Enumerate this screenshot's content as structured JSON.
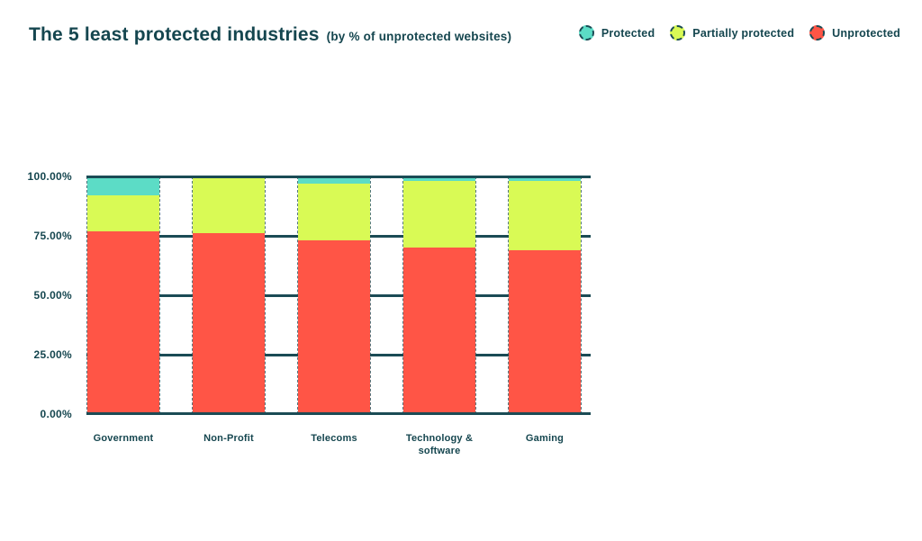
{
  "header": {
    "title": "The 5 least protected industries",
    "subtitle": "(by % of unprotected websites)"
  },
  "legend": {
    "items": [
      {
        "label": "Protected",
        "color": "#5CDCC6"
      },
      {
        "label": "Partially protected",
        "color": "#D9FA55"
      },
      {
        "label": "Unprotected",
        "color": "#FF5546"
      }
    ]
  },
  "chart_data": {
    "type": "bar",
    "stacked": true,
    "title": "The 5 least protected industries",
    "subtitle": "(by % of unprotected websites)",
    "categories": [
      "Government",
      "Non-Profit",
      "Telecoms",
      "Technology & software",
      "Gaming"
    ],
    "series": [
      {
        "name": "Protected",
        "color": "#5CDCC6",
        "values": [
          8,
          0,
          3,
          2,
          2
        ]
      },
      {
        "name": "Partially protected",
        "color": "#D9FA55",
        "values": [
          15,
          24,
          24,
          28,
          29
        ]
      },
      {
        "name": "Unprotected",
        "color": "#FF5546",
        "values": [
          77,
          76,
          73,
          70,
          69
        ]
      }
    ],
    "units": "%",
    "ylim": [
      0,
      100
    ],
    "yticks": [
      {
        "label": "100.00%",
        "value": 100
      },
      {
        "label": "75.00%",
        "value": 75
      },
      {
        "label": "50.00%",
        "value": 50
      },
      {
        "label": "25.00%",
        "value": 25
      },
      {
        "label": "0.00%",
        "value": 0
      }
    ],
    "grid": "horizontal, visible in gaps between bars",
    "legend_position": "top-right",
    "stack_order_top_to_bottom": [
      "Protected",
      "Partially protected",
      "Unprotected"
    ]
  },
  "colors": {
    "text": "#15464F",
    "line": "#1B4B55",
    "background": "#FFFFFF"
  }
}
